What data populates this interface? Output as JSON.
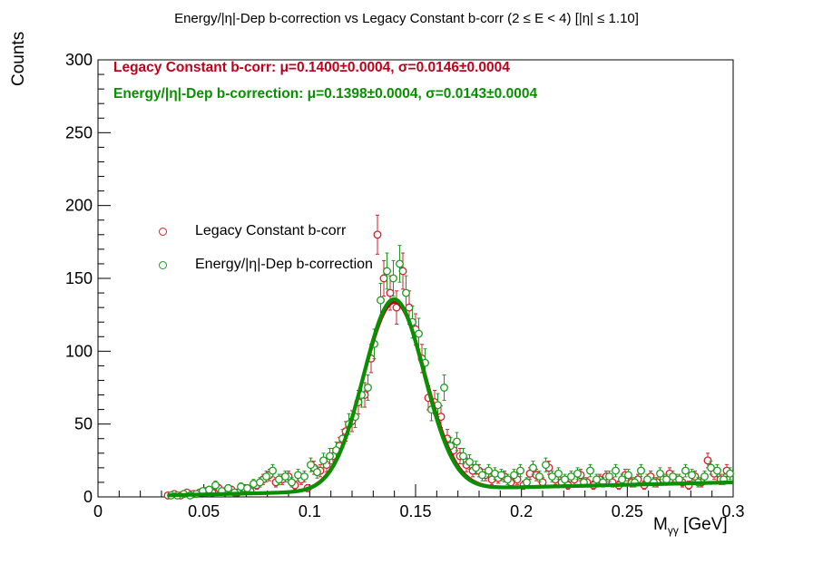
{
  "chart_data": {
    "type": "scatter",
    "title": "Energy/|η|-Dep b-correction vs Legacy Constant b-corr   (2 ≤ E < 4)   [|η| ≤ 1.10]",
    "xlabel": "Mγγ [GeV]",
    "xlabel_main": "M",
    "xlabel_sub": "γγ",
    "xlabel_unit": " [GeV]",
    "ylabel": "Counts",
    "xlim": [
      0,
      0.3
    ],
    "ylim": [
      0,
      300
    ],
    "x_ticks": [
      0,
      0.05,
      0.1,
      0.15,
      0.2,
      0.25,
      0.3
    ],
    "x_tick_labels": [
      "0",
      "0.05",
      "0.1",
      "0.15",
      "0.2",
      "0.25",
      "0.3"
    ],
    "y_ticks": [
      0,
      50,
      100,
      150,
      200,
      250,
      300
    ],
    "y_tick_labels": [
      "0",
      "50",
      "100",
      "150",
      "200",
      "250",
      "300"
    ],
    "grid": false,
    "legend_position": "center-left",
    "fit_labels": [
      {
        "text": "Legacy Constant b-corr: μ=0.1400±0.0004,  σ=0.0146±0.0004",
        "color": "#c0001a"
      },
      {
        "text": "Energy/|η|-Dep b-correction: μ=0.1398±0.0004,  σ=0.0143±0.0004",
        "color": "#089000"
      }
    ],
    "series": [
      {
        "name": "Legacy Constant b-corr",
        "color": "#d3202a",
        "marker": "open-circle",
        "fit": {
          "mu": 0.14,
          "sigma": 0.0146,
          "amplitude": 129,
          "background": "linear"
        },
        "x": [
          0.033,
          0.036,
          0.039,
          0.042,
          0.045,
          0.048,
          0.051,
          0.054,
          0.057,
          0.06,
          0.063,
          0.066,
          0.069,
          0.072,
          0.075,
          0.078,
          0.081,
          0.084,
          0.087,
          0.09,
          0.093,
          0.096,
          0.099,
          0.102,
          0.105,
          0.108,
          0.111,
          0.114,
          0.117,
          0.12,
          0.123,
          0.126,
          0.129,
          0.132,
          0.135,
          0.138,
          0.141,
          0.144,
          0.147,
          0.15,
          0.153,
          0.156,
          0.159,
          0.162,
          0.165,
          0.168,
          0.171,
          0.174,
          0.177,
          0.18,
          0.183,
          0.186,
          0.189,
          0.192,
          0.195,
          0.198,
          0.201,
          0.204,
          0.207,
          0.21,
          0.213,
          0.216,
          0.219,
          0.222,
          0.225,
          0.228,
          0.231,
          0.234,
          0.237,
          0.24,
          0.243,
          0.246,
          0.249,
          0.252,
          0.255,
          0.258,
          0.261,
          0.264,
          0.267,
          0.27,
          0.273,
          0.276,
          0.279,
          0.282,
          0.285,
          0.288,
          0.291,
          0.294,
          0.297
        ],
        "y": [
          1,
          2,
          1,
          3,
          2,
          3,
          4,
          3,
          6,
          4,
          5,
          3,
          6,
          4,
          8,
          12,
          15,
          10,
          12,
          14,
          8,
          12,
          6,
          20,
          18,
          22,
          28,
          35,
          45,
          52,
          65,
          70,
          95,
          180,
          150,
          140,
          130,
          155,
          130,
          115,
          95,
          68,
          65,
          55,
          40,
          32,
          28,
          22,
          18,
          18,
          15,
          12,
          13,
          14,
          10,
          12,
          8,
          16,
          15,
          10,
          20,
          12,
          10,
          8,
          12,
          15,
          10,
          8,
          12,
          14,
          10,
          8,
          15,
          10,
          12,
          8,
          14,
          10,
          12,
          16,
          12,
          10,
          8,
          14,
          10,
          25,
          16,
          12,
          18
        ],
        "yerr": [
          1,
          1.4,
          1,
          1.7,
          1.4,
          1.7,
          2,
          1.7,
          2.4,
          2,
          2.2,
          1.7,
          2.4,
          2,
          2.8,
          3.5,
          3.9,
          3.2,
          3.5,
          3.7,
          2.8,
          3.5,
          2.4,
          4.5,
          4.2,
          4.7,
          5.3,
          5.9,
          6.7,
          7.2,
          8.1,
          8.4,
          9.7,
          13.4,
          12.2,
          11.8,
          11.4,
          12.4,
          11.4,
          10.7,
          9.7,
          8.2,
          8.1,
          7.4,
          6.3,
          5.7,
          5.3,
          4.7,
          4.2,
          4.2,
          3.9,
          3.5,
          3.6,
          3.7,
          3.2,
          3.5,
          2.8,
          4,
          3.9,
          3.2,
          4.5,
          3.5,
          3.2,
          2.8,
          3.5,
          3.9,
          3.2,
          2.8,
          3.5,
          3.7,
          3.2,
          2.8,
          3.9,
          3.2,
          3.5,
          2.8,
          3.7,
          3.2,
          3.5,
          4,
          3.5,
          3.2,
          2.8,
          3.7,
          3.2,
          5,
          4,
          3.5,
          4.2
        ]
      },
      {
        "name": "Energy/|η|-Dep b-correction",
        "color": "#1e9a1e",
        "marker": "open-circle",
        "fit": {
          "mu": 0.1398,
          "sigma": 0.0143,
          "amplitude": 131,
          "background": "linear"
        },
        "x": [
          0.0345,
          0.0375,
          0.0405,
          0.0435,
          0.0465,
          0.0495,
          0.0525,
          0.0555,
          0.0585,
          0.0615,
          0.0645,
          0.0675,
          0.0705,
          0.0735,
          0.0765,
          0.0795,
          0.0825,
          0.0855,
          0.0885,
          0.0915,
          0.0945,
          0.0975,
          0.1005,
          0.1035,
          0.1065,
          0.1095,
          0.1125,
          0.1155,
          0.1185,
          0.1215,
          0.1245,
          0.1275,
          0.1305,
          0.1335,
          0.1365,
          0.1395,
          0.1425,
          0.1455,
          0.1485,
          0.1515,
          0.1545,
          0.1575,
          0.1605,
          0.1635,
          0.1665,
          0.1695,
          0.1725,
          0.1755,
          0.1785,
          0.1815,
          0.1845,
          0.1875,
          0.1905,
          0.1935,
          0.1965,
          0.1995,
          0.2025,
          0.2055,
          0.2085,
          0.2115,
          0.2145,
          0.2175,
          0.2205,
          0.2235,
          0.2265,
          0.2295,
          0.2325,
          0.2355,
          0.2385,
          0.2415,
          0.2445,
          0.2475,
          0.2505,
          0.2535,
          0.2565,
          0.2595,
          0.2625,
          0.2655,
          0.2685,
          0.2715,
          0.2745,
          0.2775,
          0.2805,
          0.2835,
          0.2865,
          0.2895,
          0.2925,
          0.2955,
          0.2985
        ],
        "y": [
          1,
          1,
          2,
          1,
          2,
          4,
          5,
          8,
          4,
          6,
          3,
          7,
          6,
          9,
          10,
          14,
          18,
          12,
          14,
          10,
          15,
          14,
          22,
          17,
          25,
          28,
          32,
          40,
          50,
          55,
          70,
          75,
          105,
          135,
          155,
          150,
          160,
          140,
          120,
          112,
          92,
          60,
          63,
          75,
          35,
          38,
          28,
          24,
          20,
          15,
          18,
          16,
          15,
          12,
          15,
          18,
          10,
          20,
          14,
          22,
          14,
          16,
          12,
          14,
          16,
          10,
          18,
          12,
          10,
          14,
          18,
          12,
          15,
          10,
          18,
          12,
          10,
          16,
          12,
          14,
          12,
          18,
          15,
          10,
          14,
          20,
          18,
          12,
          16
        ],
        "yerr": [
          1,
          1,
          1.4,
          1,
          1.4,
          2,
          2.2,
          2.8,
          2,
          2.4,
          1.7,
          2.6,
          2.4,
          3,
          3.2,
          3.7,
          4.2,
          3.5,
          3.7,
          3.2,
          3.9,
          3.7,
          4.7,
          4.1,
          5,
          5.3,
          5.7,
          6.3,
          7.1,
          7.4,
          8.4,
          8.7,
          10.2,
          11.6,
          12.4,
          12.2,
          12.6,
          11.8,
          11,
          10.6,
          9.6,
          7.7,
          7.9,
          8.7,
          5.9,
          6.2,
          5.3,
          4.9,
          4.5,
          3.9,
          4.2,
          4,
          3.9,
          3.5,
          3.9,
          4.2,
          3.2,
          4.5,
          3.7,
          4.7,
          3.7,
          4,
          3.5,
          3.7,
          4,
          3.2,
          4.2,
          3.5,
          3.2,
          3.7,
          4.2,
          3.5,
          3.9,
          3.2,
          4.2,
          3.5,
          3.2,
          4,
          3.5,
          3.7,
          3.5,
          4.2,
          3.9,
          3.2,
          3.7,
          4.5,
          4.2,
          3.5,
          4
        ]
      }
    ]
  }
}
